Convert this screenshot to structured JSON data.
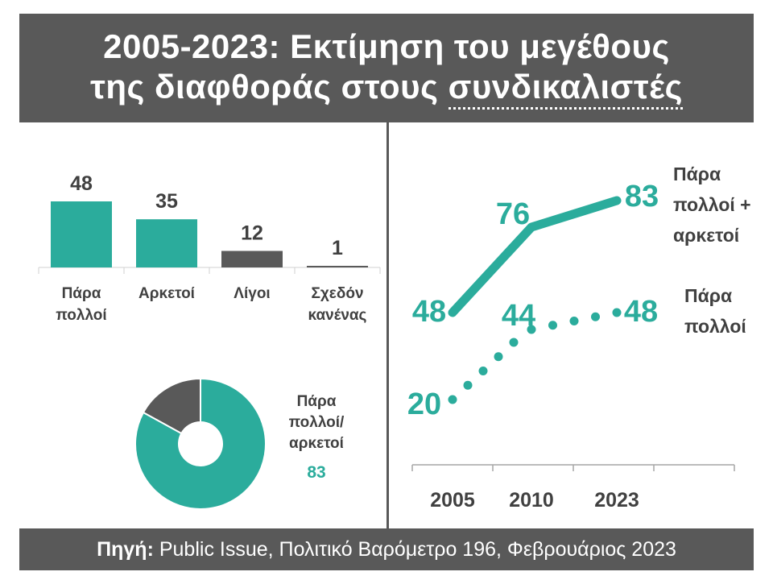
{
  "title": {
    "line1": "2005-2023: Εκτίμηση του μεγέθους",
    "line2_prefix": "της διαφθοράς στους ",
    "line2_highlight": "συνδικαλιστές"
  },
  "footer": {
    "source_label": "Πηγή:",
    "source_text": " Public Issue, Πολιτικό Βαρόμετρο 196, Φεβρουάριος 2023"
  },
  "colors": {
    "teal": "#2bac9c",
    "dark": "#595959",
    "text": "#404040"
  },
  "chart_data": [
    {
      "type": "bar",
      "categories": [
        [
          "Πάρα",
          "πολλοί"
        ],
        [
          "Αρκετοί"
        ],
        [
          "Λίγοι"
        ],
        [
          "Σχεδόν",
          "κανένας"
        ]
      ],
      "values": [
        48,
        35,
        12,
        1
      ],
      "bar_colors": [
        "#2bac9c",
        "#2bac9c",
        "#595959",
        "#595959"
      ],
      "ylim": [
        0,
        48
      ]
    },
    {
      "type": "pie",
      "values": [
        83,
        17
      ],
      "slice_colors": [
        "#2bac9c",
        "#595959"
      ],
      "label": [
        "Πάρα",
        "πολλοί/",
        "αρκετοί"
      ],
      "value_label": "83"
    },
    {
      "type": "line",
      "x": [
        "2005",
        "2010",
        "2023"
      ],
      "ylim": [
        10,
        90
      ],
      "series": [
        {
          "name": [
            "Πάρα",
            "πολλοί +",
            "αρκετοί"
          ],
          "values": [
            48,
            76,
            83
          ],
          "style": "solid"
        },
        {
          "name": [
            "Πάρα",
            "πολλοί"
          ],
          "values": [
            20,
            44,
            48
          ],
          "style": "dotted"
        }
      ]
    }
  ]
}
